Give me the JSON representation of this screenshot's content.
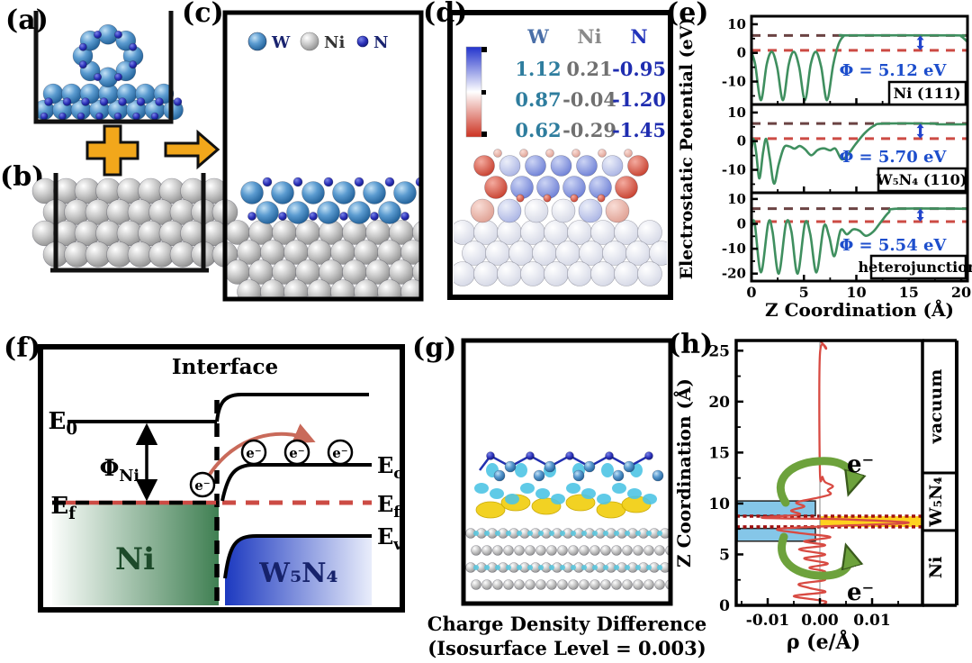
{
  "panel_labels": {
    "a": "(a)",
    "b": "(b)",
    "c": "(c)",
    "d": "(d)",
    "e": "(e)",
    "f": "(f)",
    "g": "(g)",
    "h": "(h)"
  },
  "legend": {
    "items": [
      {
        "symbol": "w-atom",
        "label": "W"
      },
      {
        "symbol": "ni-atom",
        "label": "Ni"
      },
      {
        "symbol": "n-atom",
        "label": "N"
      }
    ]
  },
  "bader_table": {
    "headers": [
      "W",
      "Ni",
      "N"
    ],
    "rows": [
      [
        "1.12",
        "0.21",
        "-0.95"
      ],
      [
        "0.87",
        "-0.04",
        "-1.20"
      ],
      [
        "0.62",
        "-0.29",
        "-1.45"
      ]
    ],
    "header_colors": [
      "#4a6fa8",
      "#8a8a8a",
      "#2233bb"
    ],
    "column_colors": [
      "#2e7d9e",
      "#707070",
      "#1f2db0"
    ]
  },
  "panel_f": {
    "interface": "Interface",
    "e0_base": "E",
    "e0_sub": "0",
    "phi_base": "Φ",
    "phi_sub": "Ni",
    "ef_base": "E",
    "ef_sub": "f",
    "ec_base": "E",
    "ec_sub": "c",
    "ev_base": "E",
    "ev_sub": "v",
    "left_material": "Ni",
    "right_material": "W₅N₄",
    "electron": "e⁻"
  },
  "panel_g": {
    "caption_line1": "Charge Density Difference",
    "caption_line2": "(Isosurface Level = 0.003)"
  },
  "chart_data": [
    {
      "id": "electrostatic-potential",
      "type": "line",
      "xlabel": "Z Coordination (Å)",
      "ylabel": "Electrostatic Potential (eV)",
      "xlim": [
        0,
        20.6
      ],
      "xticks": [
        0,
        5,
        10,
        15,
        20
      ],
      "xtick_labels": [
        "0",
        "5",
        "10",
        "15",
        "20"
      ],
      "line_color": "#3f8f5f",
      "vacuum_dash_color": "#6b4343",
      "fermi_dash_color": "#cc4b44",
      "phi_color": "#1d4ecc",
      "subplots": [
        {
          "label": "Ni (111)",
          "phi": "Φ = 5.12 eV",
          "yticks": [
            10,
            0,
            -10
          ],
          "ytick_labels": [
            "10",
            "0",
            "-10"
          ],
          "ylim": [
            -18,
            12.8
          ],
          "vacuum_level": 6.1,
          "fermi_level": 0.9,
          "series": [
            [
              0,
              0.2
            ],
            [
              0.35,
              -4
            ],
            [
              0.9,
              -16.5
            ],
            [
              1.45,
              -4
            ],
            [
              1.95,
              0.4
            ],
            [
              2.45,
              -5
            ],
            [
              3.0,
              -16.5
            ],
            [
              3.55,
              -4
            ],
            [
              4.05,
              0.4
            ],
            [
              4.55,
              -5
            ],
            [
              5.1,
              -16.5
            ],
            [
              5.65,
              -4
            ],
            [
              6.15,
              0.4
            ],
            [
              6.65,
              -5
            ],
            [
              7.2,
              -16.5
            ],
            [
              7.8,
              -4
            ],
            [
              8.3,
              3
            ],
            [
              8.8,
              5.9
            ],
            [
              9.3,
              6.1
            ],
            [
              19.4,
              6.1
            ],
            [
              20.0,
              5.8
            ],
            [
              20.6,
              3.8
            ]
          ]
        },
        {
          "label": "W₅N₄ (110)",
          "phi": "Φ = 5.70 eV",
          "yticks": [
            10,
            0,
            -10
          ],
          "ytick_labels": [
            "10",
            "0",
            "-10"
          ],
          "ylim": [
            -18,
            12.8
          ],
          "vacuum_level": 6.15,
          "fermi_level": 0.9,
          "series": [
            [
              0,
              -3
            ],
            [
              0.2,
              0.8
            ],
            [
              0.45,
              -4
            ],
            [
              0.75,
              -13
            ],
            [
              1.1,
              -4
            ],
            [
              1.4,
              0.8
            ],
            [
              1.75,
              -6
            ],
            [
              2.15,
              -14.8
            ],
            [
              2.6,
              -8
            ],
            [
              3.1,
              -2.2
            ],
            [
              3.6,
              -1.8
            ],
            [
              4.1,
              -2.6
            ],
            [
              4.6,
              -1.7
            ],
            [
              5.1,
              -2.8
            ],
            [
              5.7,
              -4.9
            ],
            [
              6.3,
              -3.1
            ],
            [
              6.9,
              -2.5
            ],
            [
              7.5,
              -3.2
            ],
            [
              8.0,
              -2.6
            ],
            [
              8.6,
              -6.3
            ],
            [
              9.2,
              -4.6
            ],
            [
              9.9,
              -1.2
            ],
            [
              10.8,
              2.8
            ],
            [
              11.7,
              5.4
            ],
            [
              12.6,
              6.15
            ],
            [
              17.3,
              6.15
            ],
            [
              17.8,
              5.9
            ],
            [
              20.6,
              5.9
            ]
          ]
        },
        {
          "label": "heterojunction",
          "phi": "Φ = 5.54 eV",
          "yticks": [
            10,
            0,
            -10,
            -20
          ],
          "ytick_labels": [
            "10",
            "0",
            "-10",
            "-20"
          ],
          "ylim": [
            -23,
            12.5
          ],
          "vacuum_level": 6.1,
          "fermi_level": 0.9,
          "series": [
            [
              0,
              -1.5
            ],
            [
              0.3,
              0.4
            ],
            [
              0.9,
              -19.5
            ],
            [
              1.6,
              0.3
            ],
            [
              2.0,
              -3
            ],
            [
              2.6,
              -20
            ],
            [
              3.3,
              0.3
            ],
            [
              3.8,
              -3
            ],
            [
              4.4,
              -20
            ],
            [
              5.1,
              0.2
            ],
            [
              5.6,
              -4
            ],
            [
              6.2,
              -19.5
            ],
            [
              6.9,
              -1
            ],
            [
              7.4,
              -5
            ],
            [
              7.9,
              -13
            ],
            [
              8.5,
              -2.6
            ],
            [
              9.1,
              -4.2
            ],
            [
              9.7,
              -2.2
            ],
            [
              10.3,
              -2.8
            ],
            [
              10.9,
              -4.8
            ],
            [
              11.6,
              -3.2
            ],
            [
              12.3,
              0.5
            ],
            [
              13.1,
              4.6
            ],
            [
              13.9,
              6.1
            ],
            [
              20.6,
              6.1
            ]
          ]
        }
      ]
    },
    {
      "id": "planar-charge-density",
      "type": "line",
      "xlabel": "ρ (e/Å)",
      "ylabel": "Z Coordination (Å)",
      "xticks": [
        -0.01,
        0,
        0.01
      ],
      "xtick_labels": [
        "-0.01",
        "0.00",
        "0.01"
      ],
      "xlim": [
        -0.016,
        0.0197
      ],
      "ylim": [
        0,
        26
      ],
      "yticks": [
        0,
        5,
        10,
        15,
        20,
        25
      ],
      "ytick_labels": [
        "0",
        "5",
        "10",
        "15",
        "20",
        "25"
      ],
      "curve_color": "#d84a42",
      "accumulation_color": "#ffd21f",
      "depletion_color": "#85c6e8",
      "arrow_color": "#6da23c",
      "interface_line_color": "#a01010",
      "interface_lines": [
        7.7,
        8.75
      ],
      "accumulation_band": {
        "z_from": 7.7,
        "z_to": 8.75
      },
      "depletion_bands": [
        {
          "z_from": 8.8,
          "z_to": 10.25
        },
        {
          "z_from": 6.3,
          "z_to": 7.55
        }
      ],
      "electron_label": "e⁻",
      "regions": [
        {
          "label": "vacuum",
          "from": 13,
          "to": 26
        },
        {
          "label": "W₅N₄",
          "from": 7.35,
          "to": 13
        },
        {
          "label": "Ni",
          "from": 0,
          "to": 7.35
        }
      ],
      "series": [
        [
          0,
          0
        ],
        [
          0.001,
          0.4
        ],
        [
          -0.005,
          0.9
        ],
        [
          0.001,
          1.3
        ],
        [
          -0.002,
          1.7
        ],
        [
          -0.004,
          2.1
        ],
        [
          0.001,
          2.5
        ],
        [
          -0.003,
          2.9
        ],
        [
          0.001,
          3.3
        ],
        [
          -0.002,
          3.7
        ],
        [
          0.0015,
          4.1
        ],
        [
          -0.003,
          4.6
        ],
        [
          0.001,
          5.0
        ],
        [
          -0.004,
          5.5
        ],
        [
          0.001,
          5.9
        ],
        [
          -0.003,
          6.3
        ],
        [
          0.002,
          6.7
        ],
        [
          -0.004,
          7.1
        ],
        [
          -0.008,
          7.5
        ],
        [
          0.003,
          7.8
        ],
        [
          0.017,
          8.1
        ],
        [
          0.004,
          8.45
        ],
        [
          -0.011,
          8.6
        ],
        [
          -0.004,
          8.9
        ],
        [
          -0.0055,
          9.3
        ],
        [
          -0.003,
          9.7
        ],
        [
          -0.0045,
          10.1
        ],
        [
          -0.001,
          10.5
        ],
        [
          0.002,
          10.9
        ],
        [
          0.0015,
          11.3
        ],
        [
          0.0025,
          11.7
        ],
        [
          0.001,
          12.1
        ],
        [
          0.0005,
          12.6
        ],
        [
          0,
          13.2
        ],
        [
          0,
          24.6
        ],
        [
          0.0012,
          25.2
        ],
        [
          0.0005,
          25.7
        ],
        [
          0,
          26
        ]
      ]
    }
  ],
  "colors": {
    "w_atom": "#3573ad",
    "ni_atom": "#a8a8a8",
    "n_atom": "#1f27a8",
    "arrow_orange": "#f2a71b",
    "f_ni_green": "#3f7f52",
    "f_w5n4_blue": "#1c39c0",
    "colorbar_top": "#2233cc",
    "colorbar_mid": "#ffffff",
    "colorbar_bottom": "#cc3322"
  }
}
